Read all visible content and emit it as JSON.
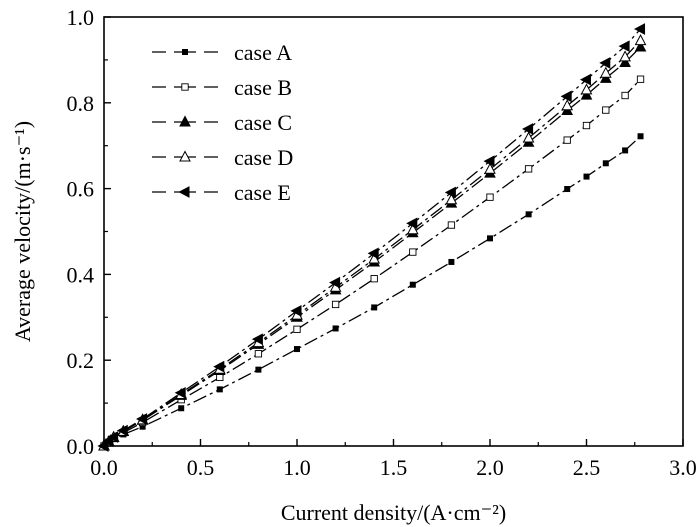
{
  "chart_data": {
    "type": "line",
    "title": "",
    "xlabel": "Current density/(A·cm⁻²)",
    "ylabel": "Average velocity/(m·s⁻¹)",
    "xlim": [
      0.0,
      3.0
    ],
    "ylim": [
      0.0,
      1.0
    ],
    "xticks": [
      "0.0",
      "0.5",
      "1.0",
      "1.5",
      "2.0",
      "2.5",
      "3.0"
    ],
    "yticks": [
      "0.0",
      "0.2",
      "0.4",
      "0.6",
      "0.8",
      "1.0"
    ],
    "grid": false,
    "legend_position": "top-left",
    "line_style": "dash-dot",
    "x": [
      0.0,
      0.025,
      0.05,
      0.1,
      0.2,
      0.4,
      0.6,
      0.8,
      1.0,
      1.2,
      1.4,
      1.6,
      1.8,
      2.0,
      2.2,
      2.4,
      2.5,
      2.6,
      2.7,
      2.78
    ],
    "series": [
      {
        "name": "case A",
        "marker": "square-filled",
        "values": [
          0.0,
          0.008,
          0.016,
          0.027,
          0.045,
          0.088,
          0.132,
          0.178,
          0.226,
          0.274,
          0.323,
          0.376,
          0.429,
          0.484,
          0.54,
          0.599,
          0.628,
          0.659,
          0.689,
          0.722
        ]
      },
      {
        "name": "case B",
        "marker": "square-open",
        "values": [
          0.0,
          0.009,
          0.018,
          0.031,
          0.055,
          0.108,
          0.16,
          0.215,
          0.272,
          0.33,
          0.39,
          0.452,
          0.515,
          0.58,
          0.646,
          0.713,
          0.747,
          0.783,
          0.817,
          0.855
        ]
      },
      {
        "name": "case C",
        "marker": "triangle-up-filled",
        "values": [
          0.0,
          0.01,
          0.02,
          0.034,
          0.06,
          0.118,
          0.176,
          0.237,
          0.3,
          0.364,
          0.429,
          0.497,
          0.566,
          0.636,
          0.708,
          0.782,
          0.818,
          0.857,
          0.894,
          0.93
        ]
      },
      {
        "name": "case D",
        "marker": "triangle-up-open",
        "values": [
          0.0,
          0.01,
          0.02,
          0.034,
          0.061,
          0.12,
          0.179,
          0.241,
          0.305,
          0.37,
          0.436,
          0.504,
          0.574,
          0.645,
          0.718,
          0.793,
          0.83,
          0.869,
          0.907,
          0.945
        ]
      },
      {
        "name": "case E",
        "marker": "triangle-left-filled",
        "values": [
          0.0,
          0.011,
          0.021,
          0.036,
          0.063,
          0.124,
          0.185,
          0.249,
          0.315,
          0.381,
          0.449,
          0.519,
          0.591,
          0.664,
          0.739,
          0.815,
          0.854,
          0.893,
          0.932,
          0.972
        ]
      }
    ]
  }
}
